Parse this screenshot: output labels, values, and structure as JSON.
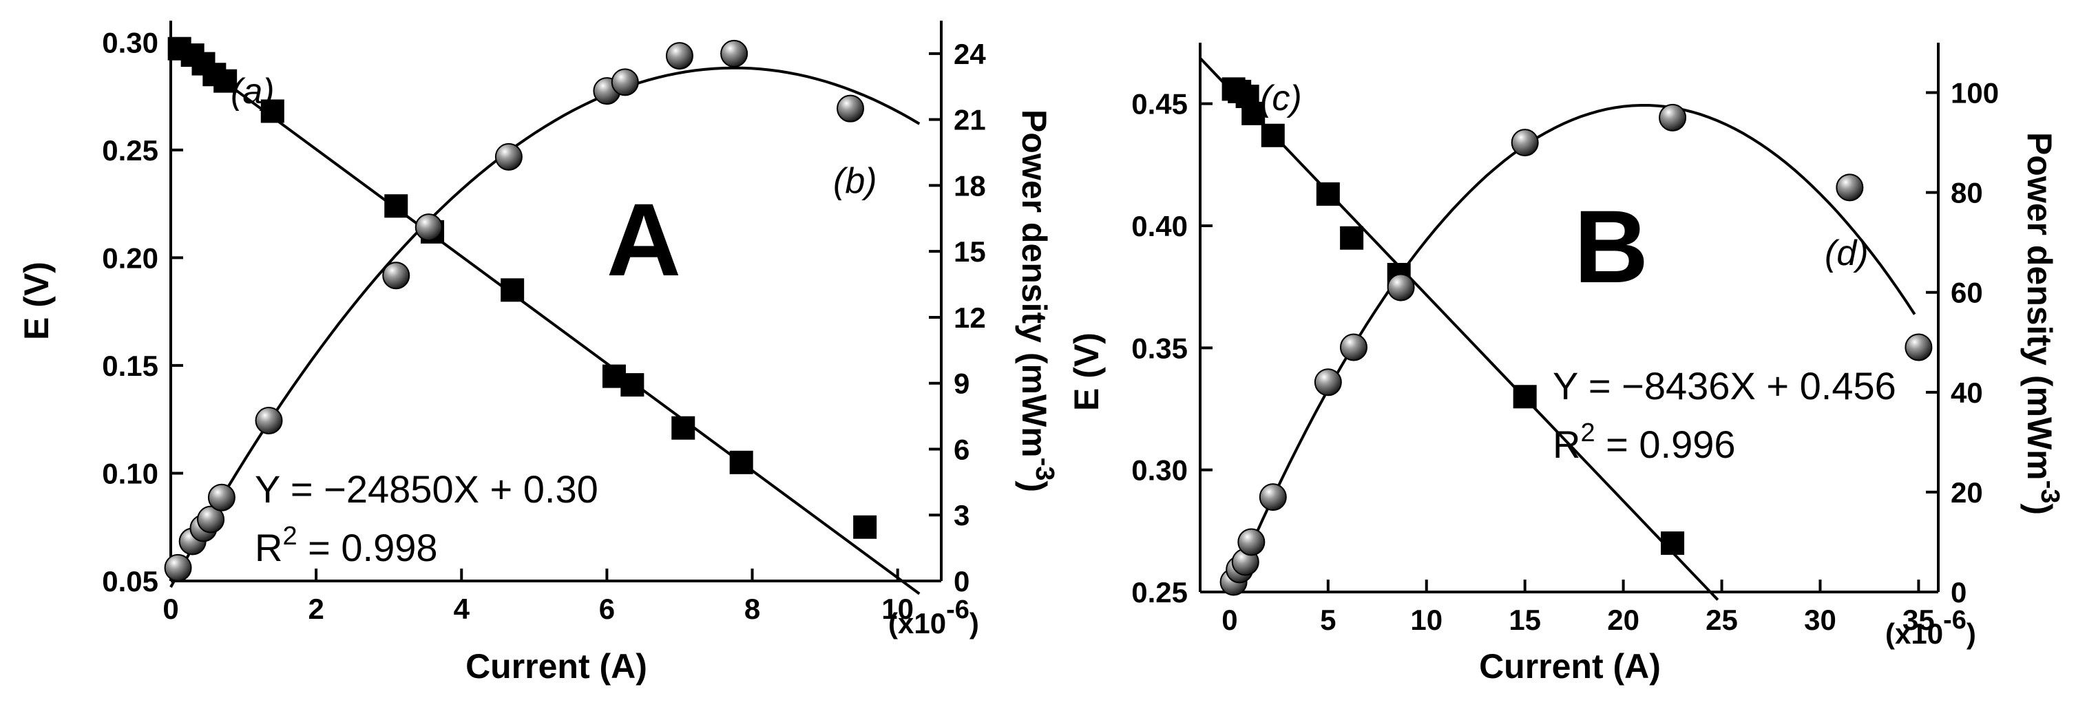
{
  "chart_data": [
    {
      "type": "scatter",
      "panel_label": "A",
      "xlabel": "Current (A)",
      "x_multiplier": "(x10",
      "x_multiplier_exp": "-6",
      "x_multiplier_close": ")",
      "xlim": [
        0,
        10.6
      ],
      "xticks": [
        0,
        2,
        4,
        6,
        8,
        10
      ],
      "left_axis": {
        "label": "E (V)",
        "ylim": [
          0.05,
          0.31
        ],
        "ticks": [
          "0.05",
          "0.10",
          "0.15",
          "0.20",
          "0.25",
          "0.30"
        ]
      },
      "right_axis": {
        "label_base": "Power density (mWm",
        "label_exp": "-3",
        "label_close": ")",
        "ylim": [
          0,
          25.5
        ],
        "ticks": [
          "0",
          "3",
          "6",
          "9",
          "12",
          "15",
          "18",
          "21",
          "24"
        ]
      },
      "series": [
        {
          "name": "(a)",
          "axis": "left",
          "marker": "square",
          "x": [
            0.12,
            0.3,
            0.45,
            0.6,
            0.75,
            1.4,
            3.1,
            3.6,
            4.7,
            6.1,
            6.35,
            7.05,
            7.85,
            9.55
          ],
          "y": [
            0.297,
            0.294,
            0.29,
            0.285,
            0.282,
            0.268,
            0.224,
            0.212,
            0.185,
            0.145,
            0.141,
            0.121,
            0.105,
            0.075
          ],
          "fit": {
            "slope": -24850,
            "intercept": 0.3,
            "x_range": [
              0,
              10.3
            ]
          }
        },
        {
          "name": "(b)",
          "axis": "right",
          "marker": "sphere",
          "x": [
            0.1,
            0.3,
            0.45,
            0.55,
            0.7,
            1.35,
            3.1,
            3.55,
            4.65,
            6.0,
            6.25,
            7.0,
            7.75,
            9.35
          ],
          "y": [
            0.6,
            1.8,
            2.4,
            2.8,
            3.8,
            7.3,
            13.9,
            16.1,
            19.3,
            22.3,
            22.7,
            23.9,
            24.0,
            21.5
          ],
          "fit": {
            "type": "quadratic",
            "x_range": [
              0,
              10.3
            ]
          }
        }
      ],
      "annotations": {
        "series_a": "(a)",
        "series_b": "(b)",
        "equation": "Y = −24850X + 0.30",
        "r2_prefix": "R",
        "r2_exp": "2",
        "r2_value": " = 0.998"
      }
    },
    {
      "type": "scatter",
      "panel_label": "B",
      "xlabel": "Current (A)",
      "x_multiplier": "(x10",
      "x_multiplier_exp": "-6",
      "x_multiplier_close": ")",
      "xlim": [
        -1.5,
        36
      ],
      "xticks": [
        0,
        5,
        10,
        15,
        20,
        25,
        30,
        35
      ],
      "left_axis": {
        "label": "E (V)",
        "ylim": [
          0.25,
          0.475
        ],
        "ticks": [
          "0.25",
          "0.30",
          "0.35",
          "0.40",
          "0.45"
        ]
      },
      "right_axis": {
        "label_base": "Power density (mWm",
        "label_exp": "-3",
        "label_close": ")",
        "ylim": [
          0,
          110
        ],
        "ticks": [
          "0",
          "20",
          "40",
          "60",
          "80",
          "100"
        ]
      },
      "series": [
        {
          "name": "(c)",
          "axis": "left",
          "marker": "square",
          "x": [
            0.2,
            0.5,
            0.9,
            1.2,
            2.2,
            5.0,
            6.2,
            8.6,
            15.0,
            22.5
          ],
          "y": [
            0.456,
            0.455,
            0.453,
            0.446,
            0.437,
            0.413,
            0.395,
            0.38,
            0.33,
            0.27
          ],
          "fit": {
            "slope": -8436,
            "intercept": 0.456,
            "x_range": [
              -1.5,
              24.8
            ]
          }
        },
        {
          "name": "(d)",
          "axis": "right",
          "marker": "sphere",
          "x": [
            0.2,
            0.5,
            0.8,
            1.1,
            2.2,
            5.0,
            6.3,
            8.7,
            15.0,
            22.5,
            31.5,
            35.0
          ],
          "y": [
            2.0,
            4.5,
            6.0,
            10.0,
            19.0,
            42.0,
            49.0,
            61.0,
            90.0,
            95.0,
            81.0,
            49.0
          ],
          "fit": {
            "type": "quadratic",
            "x_range": [
              0,
              34.8
            ]
          }
        }
      ],
      "annotations": {
        "series_c": "(c)",
        "series_d": "(d)",
        "equation": "Y = −8436X + 0.456",
        "r2_prefix": "R",
        "r2_exp": "2",
        "r2_value": " = 0.996"
      }
    }
  ]
}
